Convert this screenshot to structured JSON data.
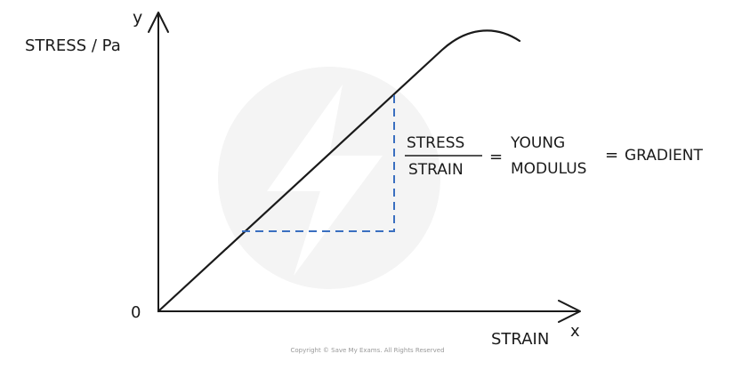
{
  "diagram": {
    "y_axis_letter": "y",
    "x_axis_letter": "x",
    "y_axis_label": "STRESS / Pa",
    "x_axis_label": "STRAIN",
    "origin_label": "0",
    "equation": {
      "numerator": "STRESS",
      "denominator": "STRAIN",
      "equals_1": "=",
      "term_line_1": "YOUNG",
      "term_line_2": "MODULUS",
      "equals_2": "=",
      "result": "GRADIENT"
    },
    "copyright": "Copyright © Save My Exams. All Rights Reserved"
  },
  "colors": {
    "line": "#1a1a1a",
    "dashed": "#3a6fc0",
    "watermark": "#f4f4f4"
  }
}
